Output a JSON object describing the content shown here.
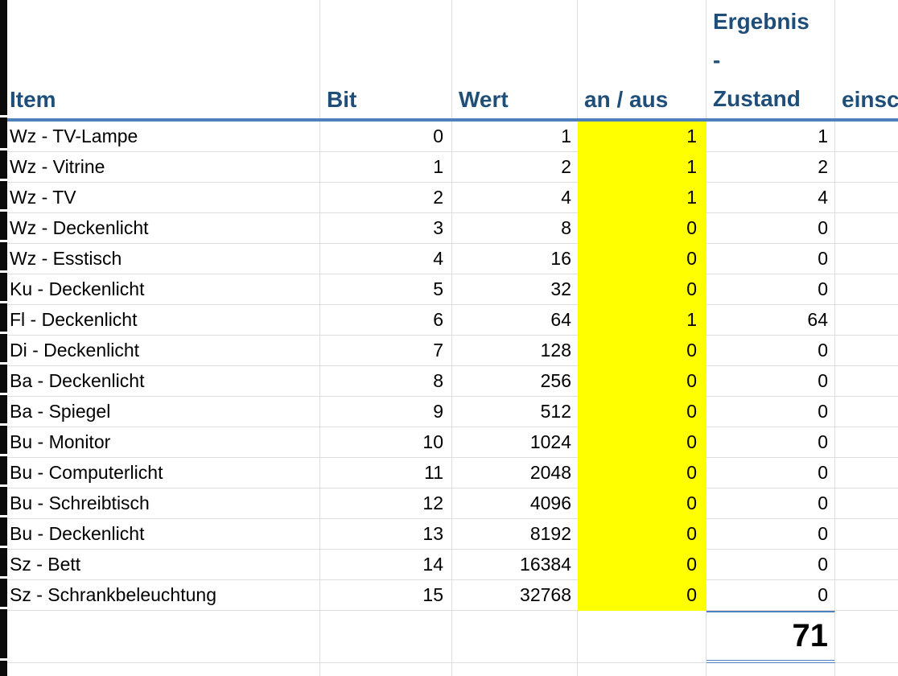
{
  "sheet": {
    "columns": [
      {
        "key": "item",
        "label": "Item"
      },
      {
        "key": "bit",
        "label": "Bit"
      },
      {
        "key": "wert",
        "label": "Wert"
      },
      {
        "key": "an_aus",
        "label": "an / aus"
      },
      {
        "key": "zustand",
        "label": "Ergebnis\n-\nZustand"
      },
      {
        "key": "einschalten",
        "label": "einsc"
      }
    ],
    "highlight_column": "an_aus",
    "rows": [
      {
        "item": "Wz - TV-Lampe",
        "bit": "0",
        "wert": "1",
        "an_aus": "1",
        "zustand": "1",
        "einschalten": ""
      },
      {
        "item": "Wz - Vitrine",
        "bit": "1",
        "wert": "2",
        "an_aus": "1",
        "zustand": "2",
        "einschalten": ""
      },
      {
        "item": "Wz - TV",
        "bit": "2",
        "wert": "4",
        "an_aus": "1",
        "zustand": "4",
        "einschalten": ""
      },
      {
        "item": "Wz - Deckenlicht",
        "bit": "3",
        "wert": "8",
        "an_aus": "0",
        "zustand": "0",
        "einschalten": ""
      },
      {
        "item": "Wz - Esstisch",
        "bit": "4",
        "wert": "16",
        "an_aus": "0",
        "zustand": "0",
        "einschalten": ""
      },
      {
        "item": "Ku - Deckenlicht",
        "bit": "5",
        "wert": "32",
        "an_aus": "0",
        "zustand": "0",
        "einschalten": ""
      },
      {
        "item": "Fl - Deckenlicht",
        "bit": "6",
        "wert": "64",
        "an_aus": "1",
        "zustand": "64",
        "einschalten": ""
      },
      {
        "item": "Di - Deckenlicht",
        "bit": "7",
        "wert": "128",
        "an_aus": "0",
        "zustand": "0",
        "einschalten": ""
      },
      {
        "item": "Ba - Deckenlicht",
        "bit": "8",
        "wert": "256",
        "an_aus": "0",
        "zustand": "0",
        "einschalten": ""
      },
      {
        "item": "Ba - Spiegel",
        "bit": "9",
        "wert": "512",
        "an_aus": "0",
        "zustand": "0",
        "einschalten": ""
      },
      {
        "item": "Bu - Monitor",
        "bit": "10",
        "wert": "1024",
        "an_aus": "0",
        "zustand": "0",
        "einschalten": ""
      },
      {
        "item": "Bu - Computerlicht",
        "bit": "11",
        "wert": "2048",
        "an_aus": "0",
        "zustand": "0",
        "einschalten": ""
      },
      {
        "item": "Bu - Schreibtisch",
        "bit": "12",
        "wert": "4096",
        "an_aus": "0",
        "zustand": "0",
        "einschalten": ""
      },
      {
        "item": "Bu - Deckenlicht",
        "bit": "13",
        "wert": "8192",
        "an_aus": "0",
        "zustand": "0",
        "einschalten": ""
      },
      {
        "item": "Sz - Bett",
        "bit": "14",
        "wert": "16384",
        "an_aus": "0",
        "zustand": "0",
        "einschalten": ""
      },
      {
        "item": "Sz - Schrankbeleuchtung",
        "bit": "15",
        "wert": "32768",
        "an_aus": "0",
        "zustand": "0",
        "einschalten": ""
      }
    ],
    "total_row": {
      "zustand": "71"
    },
    "colors": {
      "header_text": "#1F4E79",
      "accent_border": "#4E80BD",
      "highlight_fill": "#FFFF00",
      "gridline": "#DEDEDE",
      "cell_text": "#000000"
    }
  }
}
